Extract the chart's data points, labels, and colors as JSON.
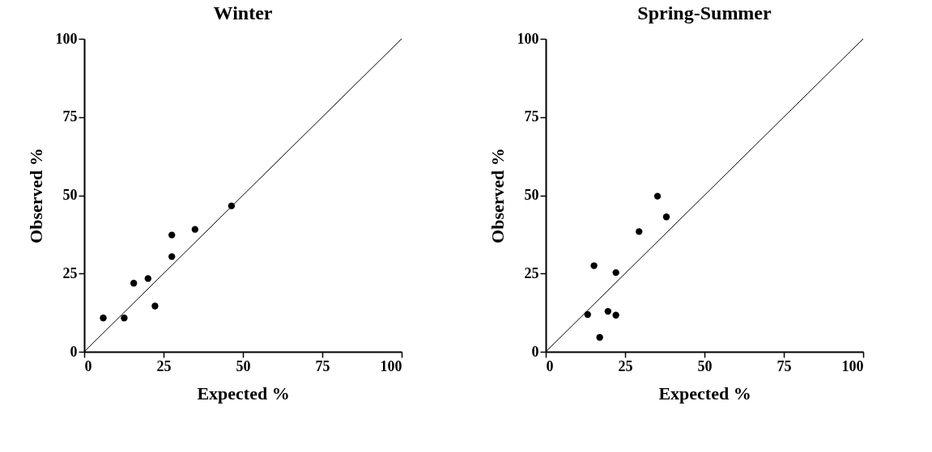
{
  "chart_data": [
    {
      "type": "scatter",
      "title": "Winter",
      "xlabel": "Expected %",
      "ylabel": "Observed %",
      "marker": "circle",
      "xlim": [
        0,
        100
      ],
      "ylim": [
        0,
        100
      ],
      "xticks": [
        0,
        25,
        50,
        75,
        100
      ],
      "yticks": [
        0,
        25,
        50,
        75,
        100
      ],
      "series": [
        {
          "color": "#000000",
          "x": [
            6.0,
            12.6,
            15.6,
            20.1,
            22.3,
            27.6,
            27.6,
            34.9,
            46.4
          ],
          "values": [
            10.8,
            10.8,
            21.9,
            23.4,
            14.6,
            30.4,
            37.3,
            39.1,
            46.6
          ]
        },
        {
          "type": "line",
          "marker": "none",
          "color": "#000000",
          "x": [
            0,
            100
          ],
          "values": [
            0,
            100
          ]
        }
      ]
    },
    {
      "type": "scatter",
      "title": "Spring-Summer",
      "xlabel": "Expected %",
      "ylabel": "Observed %",
      "marker": "circle",
      "xlim": [
        0,
        100
      ],
      "ylim": [
        0,
        100
      ],
      "xticks": [
        0,
        25,
        50,
        75,
        100
      ],
      "yticks": [
        0,
        25,
        50,
        75,
        100
      ],
      "series": [
        {
          "color": "#000000",
          "x": [
            13.2,
            15.2,
            17.0,
            19.6,
            22.1,
            22.1,
            29.4,
            35.2,
            38.0
          ],
          "values": [
            11.9,
            27.5,
            4.6,
            12.9,
            11.7,
            25.3,
            38.4,
            49.7,
            43.1
          ]
        },
        {
          "type": "line",
          "marker": "none",
          "color": "#000000",
          "x": [
            0,
            100
          ],
          "values": [
            0,
            100
          ]
        }
      ]
    }
  ]
}
